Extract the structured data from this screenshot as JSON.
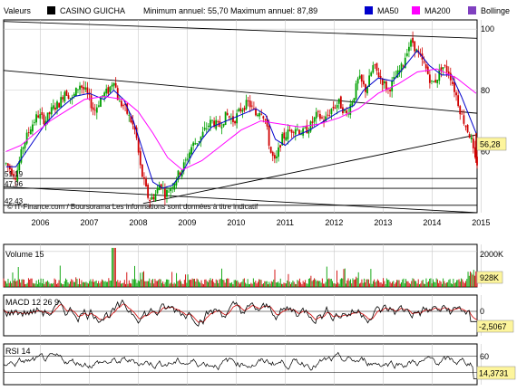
{
  "header": {
    "instrument_label": "Valeurs",
    "instrument_name": "CASINO GUICHA",
    "min_max_text": "Minimum annuel: 55,70 Maximum annuel: 87,89",
    "legend": [
      {
        "label": "MA50",
        "color": "#0000cc"
      },
      {
        "label": "MA200",
        "color": "#ff00ff"
      },
      {
        "label": "Bollinge",
        "color": "#8040c0"
      }
    ]
  },
  "credits": "© IT-Finance.com / Boursorama Les informations sont données à titre indicatif",
  "chart_data": [
    {
      "type": "candlestick",
      "name": "price",
      "x_labels": [
        "2006",
        "2007",
        "2008",
        "2009",
        "2010",
        "2011",
        "2012",
        "2013",
        "2014",
        "2015"
      ],
      "x_range": [
        2005.75,
        2015.42
      ],
      "ylim": [
        40,
        103
      ],
      "y_ticks": [
        100,
        80,
        60
      ],
      "left_labels": [
        {
          "value": 51.19,
          "text": "51,19"
        },
        {
          "value": 47.96,
          "text": "47,96"
        },
        {
          "value": 42.43,
          "text": "42,43"
        }
      ],
      "last_value": 56.28,
      "last_value_text": "56,28",
      "last_label_color": "#fdf59c",
      "grid": true,
      "series": [
        {
          "name": "Cours",
          "points": [
            [
              2005.8,
              56
            ],
            [
              2005.9,
              54
            ],
            [
              2006.0,
              52
            ],
            [
              2006.15,
              62
            ],
            [
              2006.3,
              68
            ],
            [
              2006.45,
              72
            ],
            [
              2006.6,
              70
            ],
            [
              2006.75,
              74
            ],
            [
              2006.9,
              76
            ],
            [
              2007.0,
              80
            ],
            [
              2007.15,
              77
            ],
            [
              2007.3,
              82
            ],
            [
              2007.45,
              79
            ],
            [
              2007.6,
              73
            ],
            [
              2007.75,
              78
            ],
            [
              2007.9,
              80
            ],
            [
              2008.0,
              84
            ],
            [
              2008.1,
              76
            ],
            [
              2008.2,
              75
            ],
            [
              2008.35,
              70
            ],
            [
              2008.45,
              66
            ],
            [
              2008.55,
              54
            ],
            [
              2008.65,
              48
            ],
            [
              2008.72,
              44
            ],
            [
              2008.85,
              46
            ],
            [
              2008.95,
              50
            ],
            [
              2009.05,
              46
            ],
            [
              2009.15,
              48
            ],
            [
              2009.3,
              52
            ],
            [
              2009.45,
              56
            ],
            [
              2009.6,
              62
            ],
            [
              2009.75,
              64
            ],
            [
              2009.9,
              68
            ],
            [
              2010.0,
              70
            ],
            [
              2010.15,
              68
            ],
            [
              2010.3,
              72
            ],
            [
              2010.45,
              70
            ],
            [
              2010.6,
              74
            ],
            [
              2010.75,
              76
            ],
            [
              2010.9,
              72
            ],
            [
              2011.0,
              74
            ],
            [
              2011.1,
              70
            ],
            [
              2011.2,
              60
            ],
            [
              2011.3,
              56
            ],
            [
              2011.42,
              64
            ],
            [
              2011.55,
              66
            ],
            [
              2011.7,
              68
            ],
            [
              2011.85,
              66
            ],
            [
              2012.0,
              68
            ],
            [
              2012.15,
              72
            ],
            [
              2012.3,
              70
            ],
            [
              2012.45,
              74
            ],
            [
              2012.6,
              76
            ],
            [
              2012.75,
              72
            ],
            [
              2012.9,
              78
            ],
            [
              2013.0,
              84
            ],
            [
              2013.15,
              80
            ],
            [
              2013.3,
              88
            ],
            [
              2013.45,
              84
            ],
            [
              2013.6,
              80
            ],
            [
              2013.75,
              84
            ],
            [
              2013.9,
              88
            ],
            [
              2014.0,
              94
            ],
            [
              2014.1,
              96
            ],
            [
              2014.2,
              92
            ],
            [
              2014.35,
              88
            ],
            [
              2014.5,
              82
            ],
            [
              2014.6,
              84
            ],
            [
              2014.7,
              88
            ],
            [
              2014.85,
              86
            ],
            [
              2015.0,
              78
            ],
            [
              2015.1,
              72
            ],
            [
              2015.2,
              68
            ],
            [
              2015.3,
              64
            ],
            [
              2015.36,
              58
            ],
            [
              2015.4,
              56.28
            ]
          ]
        },
        {
          "name": "MA50",
          "color": "#0000cc",
          "points": [
            [
              2005.8,
              55
            ],
            [
              2006.0,
              55
            ],
            [
              2006.3,
              62
            ],
            [
              2006.6,
              69
            ],
            [
              2006.9,
              74
            ],
            [
              2007.2,
              78
            ],
            [
              2007.5,
              79
            ],
            [
              2007.8,
              77
            ],
            [
              2008.0,
              80
            ],
            [
              2008.2,
              77
            ],
            [
              2008.4,
              70
            ],
            [
              2008.6,
              60
            ],
            [
              2008.8,
              50
            ],
            [
              2009.0,
              48
            ],
            [
              2009.2,
              49
            ],
            [
              2009.4,
              53
            ],
            [
              2009.6,
              59
            ],
            [
              2009.8,
              64
            ],
            [
              2010.0,
              68
            ],
            [
              2010.3,
              70
            ],
            [
              2010.6,
              72
            ],
            [
              2010.9,
              74
            ],
            [
              2011.1,
              72
            ],
            [
              2011.3,
              64
            ],
            [
              2011.5,
              62
            ],
            [
              2011.7,
              65
            ],
            [
              2012.0,
              67
            ],
            [
              2012.3,
              70
            ],
            [
              2012.6,
              73
            ],
            [
              2012.9,
              75
            ],
            [
              2013.1,
              80
            ],
            [
              2013.4,
              84
            ],
            [
              2013.7,
              83
            ],
            [
              2014.0,
              89
            ],
            [
              2014.2,
              93
            ],
            [
              2014.45,
              88
            ],
            [
              2014.7,
              85
            ],
            [
              2014.9,
              85
            ],
            [
              2015.1,
              78
            ],
            [
              2015.3,
              70
            ],
            [
              2015.4,
              66
            ]
          ]
        },
        {
          "name": "MA200",
          "color": "#ff00ff",
          "points": [
            [
              2005.8,
              60
            ],
            [
              2006.1,
              62
            ],
            [
              2006.4,
              66
            ],
            [
              2006.7,
              70
            ],
            [
              2007.0,
              73
            ],
            [
              2007.4,
              77
            ],
            [
              2007.8,
              78
            ],
            [
              2008.2,
              77
            ],
            [
              2008.5,
              73
            ],
            [
              2008.8,
              66
            ],
            [
              2009.1,
              58
            ],
            [
              2009.4,
              54
            ],
            [
              2009.8,
              57
            ],
            [
              2010.2,
              62
            ],
            [
              2010.6,
              67
            ],
            [
              2011.0,
              70
            ],
            [
              2011.4,
              69
            ],
            [
              2011.8,
              68
            ],
            [
              2012.2,
              69
            ],
            [
              2012.6,
              71
            ],
            [
              2013.0,
              74
            ],
            [
              2013.4,
              79
            ],
            [
              2013.8,
              82
            ],
            [
              2014.2,
              86
            ],
            [
              2014.6,
              87
            ],
            [
              2015.0,
              84
            ],
            [
              2015.4,
              79
            ]
          ]
        }
      ],
      "trendlines": [
        {
          "from": [
            2005.75,
            86.5
          ],
          "to": [
            2015.42,
            72.5
          ]
        },
        {
          "from": [
            2005.75,
            102.5
          ],
          "to": [
            2015.42,
            97
          ]
        },
        {
          "from": [
            2008.6,
            43
          ],
          "to": [
            2015.42,
            65.5
          ]
        },
        {
          "from": [
            2005.75,
            48.5
          ],
          "to": [
            2015.42,
            40
          ]
        },
        {
          "from": [
            2005.75,
            51.19
          ],
          "to": [
            2015.42,
            51.19
          ]
        },
        {
          "from": [
            2005.75,
            47.96
          ],
          "to": [
            2015.42,
            47.96
          ]
        },
        {
          "from": [
            2005.75,
            42.43
          ],
          "to": [
            2015.42,
            42.43
          ]
        }
      ]
    },
    {
      "type": "bar",
      "name": "volume",
      "title": "Volume 15",
      "ylim": [
        0,
        2400
      ],
      "y_ticks": [
        {
          "value": 2000,
          "text": "2000K"
        }
      ],
      "last_value": 928,
      "last_value_text": "928K",
      "last_label_color": "#fdf59c",
      "grid": true
    },
    {
      "type": "line",
      "name": "macd",
      "title": "MACD 12 26 9",
      "ylim": [
        -6,
        4
      ],
      "y_ticks": [
        {
          "value": 0,
          "text": "0"
        }
      ],
      "last_value": -2.5067,
      "last_value_text": "-2,5067",
      "last_label_color": "#fdf59c",
      "grid": true
    },
    {
      "type": "line",
      "name": "rsi",
      "title": "RSI 14",
      "ylim": [
        0,
        100
      ],
      "y_ticks": [
        {
          "value": 60,
          "text": "60"
        }
      ],
      "levels": [
        70,
        30
      ],
      "last_value": 14.3731,
      "last_value_text": "14,3731",
      "last_label_color": "#fdf59c",
      "grid": true
    }
  ]
}
